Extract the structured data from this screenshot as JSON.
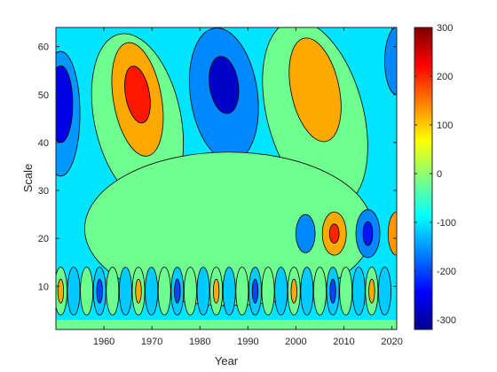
{
  "chart_data": {
    "type": "heatmap",
    "subtype": "filled-contour",
    "title": "",
    "xlabel": "Year",
    "ylabel": "Scale",
    "xlim": [
      1950,
      2021
    ],
    "ylim": [
      1,
      64
    ],
    "xticks": [
      1960,
      1970,
      1980,
      1990,
      2000,
      2010,
      2020
    ],
    "yticks": [
      10,
      20,
      30,
      40,
      50,
      60
    ],
    "colorbar": {
      "colormap": "jet",
      "range": [
        -320,
        300
      ],
      "ticks": [
        300,
        200,
        100,
        0,
        -100,
        -200,
        -300
      ]
    },
    "contour_levels": [
      -300,
      -200,
      -100,
      0,
      100,
      200,
      300
    ],
    "features": [
      {
        "kind": "min",
        "x": 1952,
        "y": 48,
        "value": -300
      },
      {
        "kind": "max",
        "x": 1967,
        "y": 50,
        "value": 220
      },
      {
        "kind": "min",
        "x": 1985,
        "y": 52,
        "value": -300
      },
      {
        "kind": "max",
        "x": 2004,
        "y": 53,
        "value": 130
      },
      {
        "kind": "max",
        "x": 2008,
        "y": 21,
        "value": 210
      },
      {
        "kind": "min",
        "x": 2015,
        "y": 21,
        "value": -230
      },
      {
        "kind": "max",
        "x": 2021,
        "y": 21,
        "value": 160
      }
    ]
  }
}
